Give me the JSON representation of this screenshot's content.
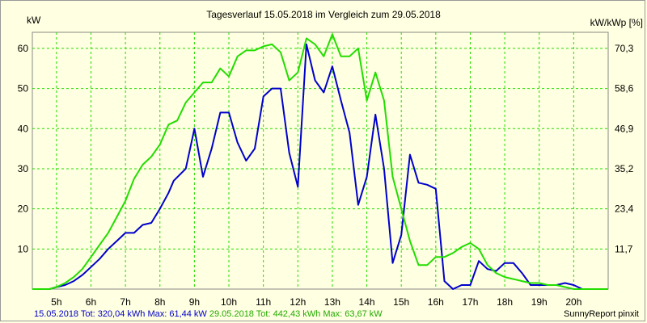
{
  "chart_data": {
    "type": "line",
    "title": "Tagesverlauf 15.05.2018 im Vergleich zum 29.05.2018",
    "ylabel_left": "kW",
    "ylabel_right": "kW/kWp [%]",
    "x_ticks": [
      "5h",
      "6h",
      "7h",
      "8h",
      "9h",
      "10h",
      "11h",
      "12h",
      "13h",
      "14h",
      "15h",
      "16h",
      "17h",
      "18h",
      "19h",
      "20h"
    ],
    "y_ticks_left": [
      "10",
      "20",
      "30",
      "40",
      "50",
      "60"
    ],
    "y_ticks_right": [
      "11,7",
      "23,4",
      "35,2",
      "46,9",
      "58,6",
      "70,3"
    ],
    "xlim": [
      4.3,
      21.0
    ],
    "ylim": [
      0,
      64
    ],
    "grid": true,
    "series": [
      {
        "name": "15.05.2018",
        "color": "#0000cc",
        "x": [
          4.3,
          4.8,
          5.0,
          5.25,
          5.5,
          5.75,
          6.0,
          6.25,
          6.5,
          6.75,
          7.0,
          7.25,
          7.5,
          7.75,
          8.0,
          8.25,
          8.4,
          8.75,
          9.0,
          9.25,
          9.5,
          9.75,
          10.0,
          10.25,
          10.5,
          10.75,
          11.0,
          11.25,
          11.5,
          11.75,
          12.0,
          12.25,
          12.5,
          12.75,
          13.0,
          13.25,
          13.5,
          13.75,
          14.0,
          14.25,
          14.5,
          14.75,
          15.0,
          15.25,
          15.5,
          15.75,
          16.0,
          16.25,
          16.5,
          16.75,
          17.0,
          17.25,
          17.5,
          17.75,
          18.0,
          18.25,
          18.5,
          18.75,
          19.0,
          19.25,
          19.5,
          19.75,
          20.0,
          20.25,
          20.5,
          21.0
        ],
        "y": [
          0,
          0,
          0.5,
          1,
          2,
          3.5,
          5.5,
          7.5,
          10,
          12,
          14,
          14,
          16,
          16.5,
          20,
          24,
          27,
          30,
          40,
          28,
          35,
          44,
          44,
          36.5,
          32,
          35,
          48,
          50,
          50,
          34,
          25.5,
          61,
          52,
          49,
          55.5,
          47,
          39,
          21,
          28,
          43.5,
          30,
          6.5,
          13.5,
          33.5,
          26.5,
          26,
          25,
          2,
          0,
          1,
          1,
          7,
          5,
          4.5,
          6.5,
          6.5,
          4,
          1,
          1,
          1,
          1,
          1.5,
          1,
          0,
          0,
          0
        ]
      },
      {
        "name": "29.05.2018",
        "color": "#22dd00",
        "x": [
          4.3,
          4.8,
          5.0,
          5.25,
          5.5,
          5.75,
          6.0,
          6.25,
          6.5,
          6.75,
          7.0,
          7.25,
          7.5,
          7.75,
          8.0,
          8.25,
          8.5,
          8.75,
          9.0,
          9.25,
          9.5,
          9.75,
          10.0,
          10.25,
          10.5,
          10.75,
          11.0,
          11.25,
          11.5,
          11.75,
          12.0,
          12.25,
          12.5,
          12.75,
          13.0,
          13.25,
          13.5,
          13.75,
          14.0,
          14.25,
          14.5,
          14.75,
          15.0,
          15.25,
          15.5,
          15.75,
          16.0,
          16.25,
          16.5,
          16.75,
          17.0,
          17.25,
          17.5,
          17.75,
          18.0,
          18.25,
          18.5,
          18.75,
          19.0,
          19.25,
          19.5,
          19.75,
          20.0,
          20.25,
          20.5,
          21.0
        ],
        "y": [
          0,
          0,
          0.5,
          1.5,
          3,
          5,
          8,
          11,
          14,
          18,
          22,
          27.5,
          31,
          33,
          36,
          41,
          42,
          46.5,
          49,
          51.5,
          51.5,
          55,
          53,
          58,
          59.5,
          59.5,
          60.5,
          61,
          59,
          52,
          54,
          62.5,
          61,
          58,
          63.5,
          58,
          58,
          60,
          47,
          54,
          47,
          28,
          20,
          12,
          6,
          6,
          8,
          8,
          9,
          10.5,
          11.5,
          10,
          6,
          4,
          3,
          2.5,
          2,
          1.5,
          1.5,
          1,
          1,
          0.5,
          0,
          0,
          0,
          0
        ]
      }
    ]
  },
  "footer": {
    "series1_label": "15.05.2018 Tot: 320,04 kWh Max: 61,44 kW",
    "series2_label": "29.05.2018 Tot: 442,43 kWh Max: 63,67 kW",
    "credit": "SunnyReport pinxit"
  }
}
